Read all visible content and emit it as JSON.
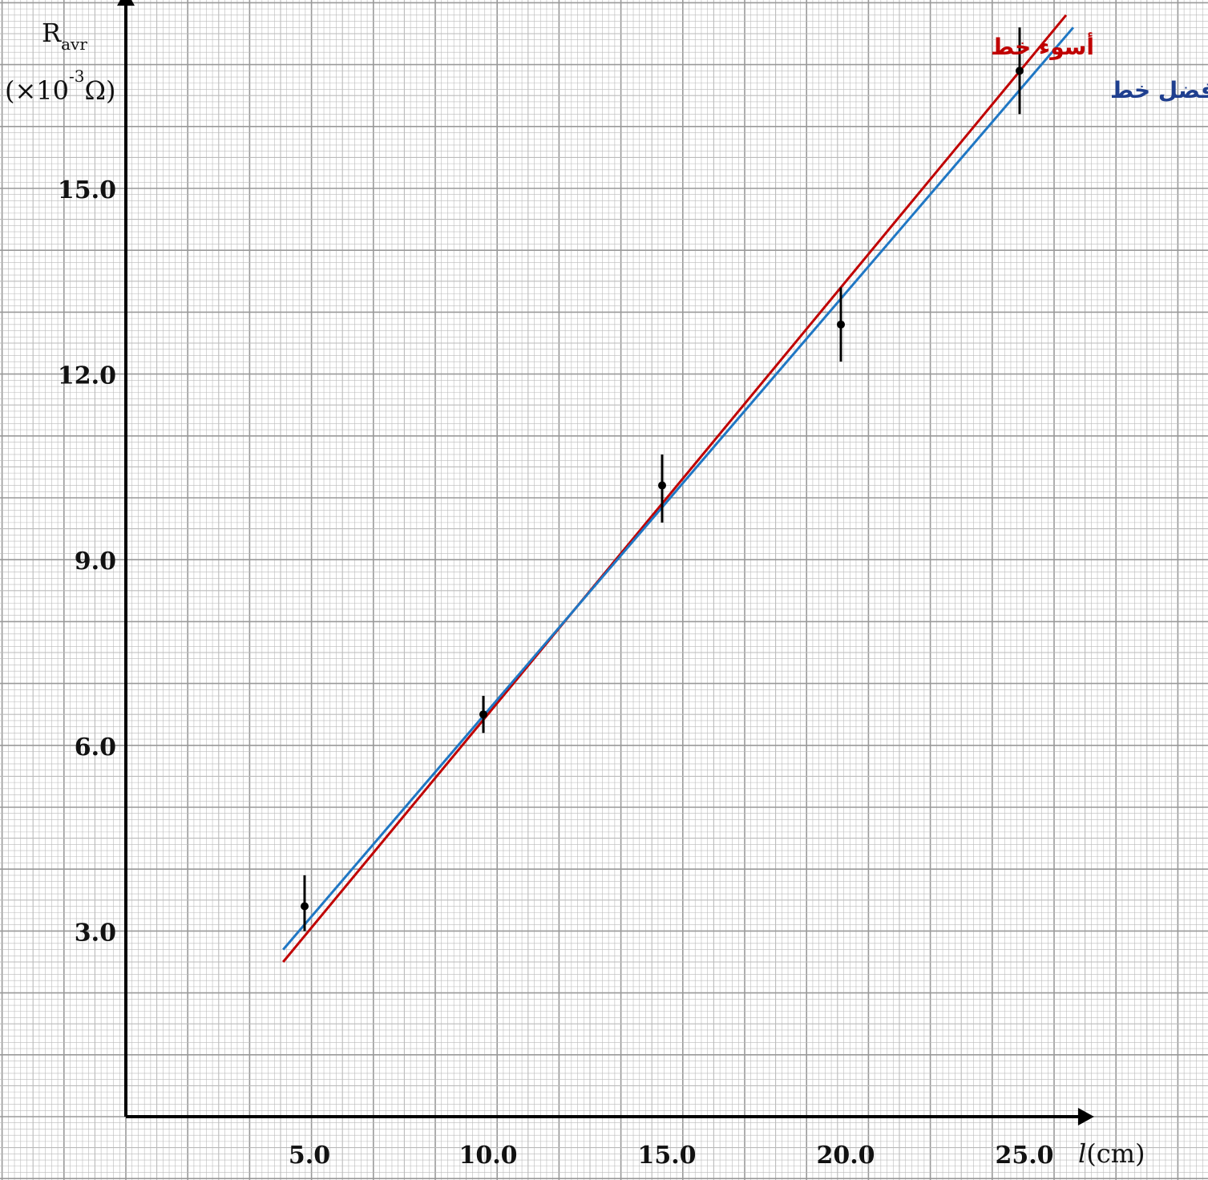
{
  "chart_data": {
    "type": "line",
    "title": "",
    "xlabel": {
      "symbol": "l",
      "unit": "(cm)"
    },
    "ylabel": {
      "symbol": "R",
      "subscript": "avr",
      "unit_prefix": "(×10",
      "unit_exponent": "-3",
      "unit_suffix": "Ω)"
    },
    "xlim": [
      0,
      26.5
    ],
    "ylim": [
      0,
      17.9
    ],
    "x_ticks": [
      5,
      10,
      15,
      20,
      25
    ],
    "x_tick_labels": [
      "5.0",
      "10.0",
      "15.0",
      "20.0",
      "25.0"
    ],
    "y_ticks": [
      3,
      6,
      9,
      12,
      15
    ],
    "y_tick_labels": [
      "3.0",
      "6.0",
      "9.0",
      "12.0",
      "15.0"
    ],
    "grid": true,
    "data_points": {
      "x": [
        5.0,
        10.0,
        15.0,
        20.0,
        25.0
      ],
      "y": [
        3.4,
        6.5,
        10.2,
        12.8,
        16.9
      ],
      "error_low": [
        3.0,
        6.2,
        9.6,
        12.2,
        16.2
      ],
      "error_high": [
        3.9,
        6.8,
        10.7,
        13.4,
        17.6
      ]
    },
    "series": [
      {
        "name": "أسوء خط",
        "color": "#c00000",
        "x": [
          4.4,
          26.3
        ],
        "y": [
          2.5,
          17.8
        ]
      },
      {
        "name": "أفضل خط",
        "color": "#1f77c4",
        "x": [
          4.4,
          26.5
        ],
        "y": [
          2.7,
          17.6
        ]
      }
    ],
    "legend_placement": "top-right",
    "colors": {
      "grid_minor": "#bbbbbb",
      "grid_major": "#999999",
      "axis": "#000000",
      "points": "#000000",
      "worst_label": "#c00000",
      "best_label": "#1f3f8f"
    }
  }
}
